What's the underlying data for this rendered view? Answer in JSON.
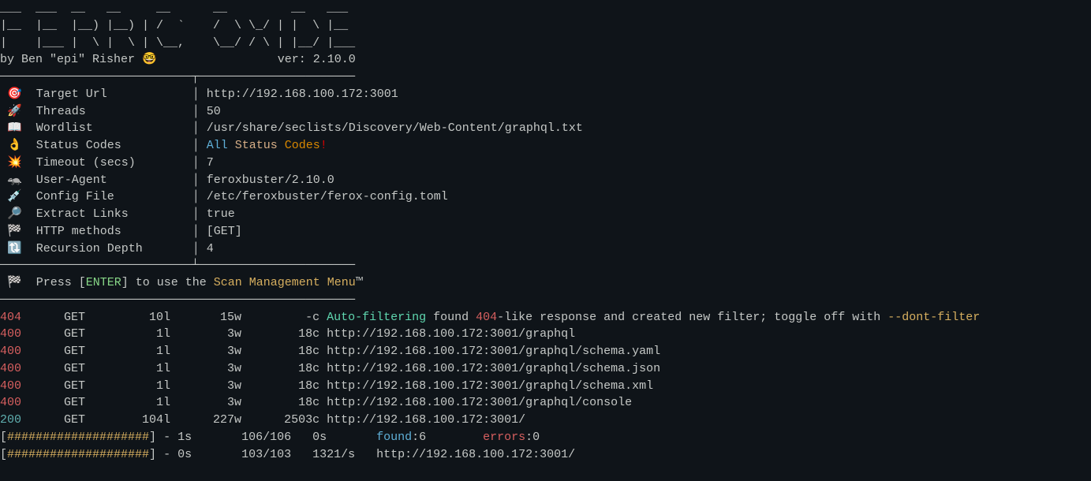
{
  "colors": {
    "background": "#0f1419",
    "text": "#c5c8c6",
    "status_all": "#5fafd7",
    "status_status": "#d7af87",
    "status_codes": "#d78700",
    "status_bang": "#d70000",
    "enter_key": "#87d787",
    "scan_menu": "#d7af5f",
    "code_error": "#d75f5f",
    "code_success": "#5fafaf",
    "auto_filter": "#5fd7af",
    "dont_filter": "#d7af5f",
    "progress_hash": "#d7af5f",
    "found_label": "#5fafd7",
    "errors_label": "#d75f5f"
  },
  "header": {
    "ascii_line1": "___  ___  __   __     __      __         __   ___",
    "ascii_line2": "|__  |__  |__) |__) | /  `    /  \\ \\_/ | |  \\ |__",
    "ascii_line3": "|    |___ |  \\ |  \\ | \\__,    \\__/ / \\ | |__/ |___",
    "byline_author": "by Ben \"epi\" Risher ",
    "byline_emoji": "🤓",
    "byline_version_label": "ver: ",
    "byline_version": "2.10.0"
  },
  "divider_top": "───────────────────────────┬──────────────────────",
  "divider_mid": "───────────────────────────┴──────────────────────",
  "divider_bot": "──────────────────────────────────────────────────",
  "config": [
    {
      "icon": "🎯",
      "label": "Target Url",
      "value": "http://192.168.100.172:3001"
    },
    {
      "icon": "🚀",
      "label": "Threads",
      "value": "50"
    },
    {
      "icon": "📖",
      "label": "Wordlist",
      "value": "/usr/share/seclists/Discovery/Web-Content/graphql.txt"
    },
    {
      "icon": "👌",
      "label": "Status Codes",
      "value_special": "status_codes"
    },
    {
      "icon": "💥",
      "label": "Timeout (secs)",
      "value": "7"
    },
    {
      "icon": "🦡",
      "label": "User-Agent",
      "value": "feroxbuster/2.10.0"
    },
    {
      "icon": "💉",
      "label": "Config File",
      "value": "/etc/feroxbuster/ferox-config.toml"
    },
    {
      "icon": "🔎",
      "label": "Extract Links",
      "value": "true"
    },
    {
      "icon": "🏁",
      "label": "HTTP methods",
      "value": "[GET]"
    },
    {
      "icon": "🔃",
      "label": "Recursion Depth",
      "value": "4"
    }
  ],
  "status_codes_parts": {
    "all": "All ",
    "status": "Status ",
    "codes": "Codes",
    "bang": "!"
  },
  "prompt": {
    "icon": "🏁",
    "prefix": "  Press [",
    "enter": "ENTER",
    "middle": "] to use the ",
    "menu": "Scan Management Menu",
    "tm": "™"
  },
  "results": [
    {
      "code": "404",
      "code_class": "code-404",
      "method": "GET",
      "lines": "10l",
      "words": "15w",
      "chars": "-c",
      "special": "auto_filter"
    },
    {
      "code": "400",
      "code_class": "code-400",
      "method": "GET",
      "lines": "1l",
      "words": "3w",
      "chars": "18c",
      "url": "http://192.168.100.172:3001/graphql"
    },
    {
      "code": "400",
      "code_class": "code-400",
      "method": "GET",
      "lines": "1l",
      "words": "3w",
      "chars": "18c",
      "url": "http://192.168.100.172:3001/graphql/schema.yaml"
    },
    {
      "code": "400",
      "code_class": "code-400",
      "method": "GET",
      "lines": "1l",
      "words": "3w",
      "chars": "18c",
      "url": "http://192.168.100.172:3001/graphql/schema.json"
    },
    {
      "code": "400",
      "code_class": "code-400",
      "method": "GET",
      "lines": "1l",
      "words": "3w",
      "chars": "18c",
      "url": "http://192.168.100.172:3001/graphql/schema.xml"
    },
    {
      "code": "400",
      "code_class": "code-400",
      "method": "GET",
      "lines": "1l",
      "words": "3w",
      "chars": "18c",
      "url": "http://192.168.100.172:3001/graphql/console"
    },
    {
      "code": "200",
      "code_class": "code-200",
      "method": "GET",
      "lines": "104l",
      "words": "227w",
      "chars": "2503c",
      "url": "http://192.168.100.172:3001/"
    }
  ],
  "auto_filter_parts": {
    "auto": "Auto-filtering",
    "mid1": " found ",
    "code404": "404",
    "mid2": "-like response and created new filter; toggle off with ",
    "flag": "--dont-filter"
  },
  "progress": [
    {
      "bar": "####################",
      "time": "1s",
      "progress": "106/106",
      "rate": "0s",
      "found_label": "found",
      "found_val": ":6",
      "errors_label": "errors",
      "errors_val": ":0"
    },
    {
      "bar": "####################",
      "time": "0s",
      "progress": "103/103",
      "rate": "1321/s",
      "url": "http://192.168.100.172:3001/"
    }
  ]
}
